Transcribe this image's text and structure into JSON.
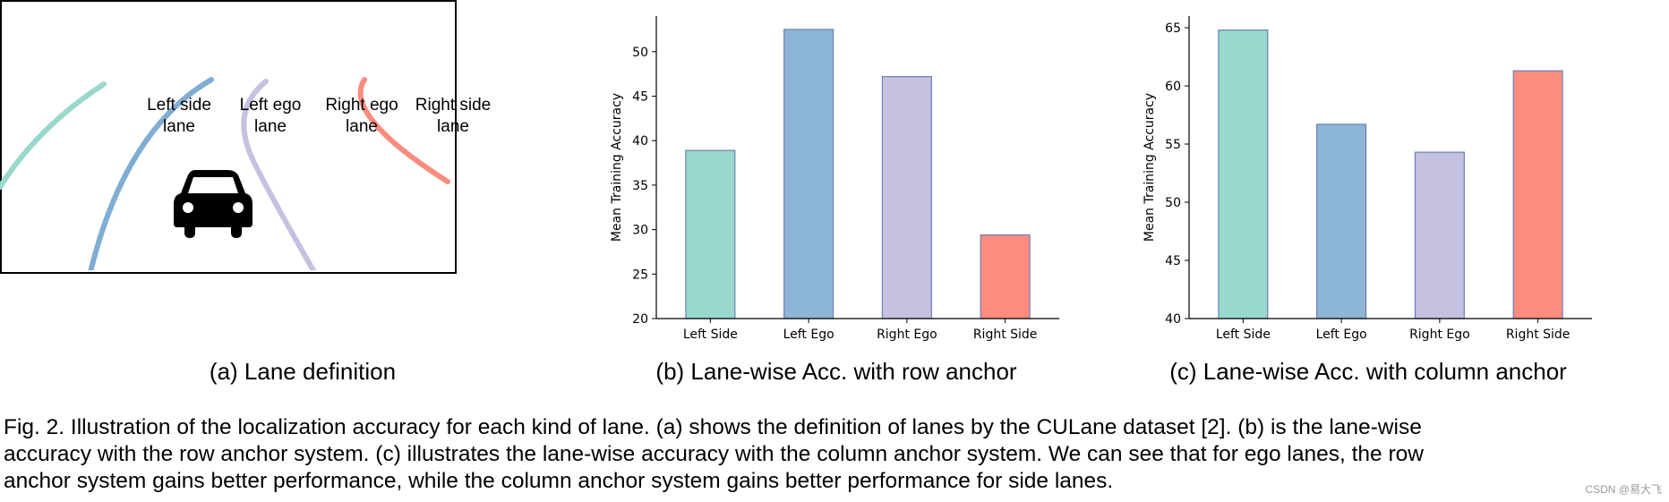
{
  "panel_a": {
    "lane_labels": [
      {
        "line1": "Left side",
        "line2": "lane"
      },
      {
        "line1": "Left ego",
        "line2": "lane"
      },
      {
        "line1": "Right ego",
        "line2": "lane"
      },
      {
        "line1": "Right side",
        "line2": "lane"
      }
    ],
    "lane_colors": [
      "#99d8cc",
      "#7fadd3",
      "#c5c1e0",
      "#f98c7e"
    ],
    "icon": "car-icon",
    "caption": "(a) Lane definition"
  },
  "chart_data": [
    {
      "type": "bar",
      "caption": "(b) Lane-wise Acc. with row anchor",
      "categories": [
        "Left Side",
        "Left Ego",
        "Right Ego",
        "Right Side"
      ],
      "values": [
        38.9,
        52.5,
        47.2,
        29.4
      ],
      "colors": [
        "#99d8cc",
        "#8cb5d6",
        "#c5c1e0",
        "#fb8c7f"
      ],
      "ylabel": "Mean Training Accuracy",
      "ylim": [
        20,
        54
      ],
      "yticks": [
        20,
        25,
        30,
        35,
        40,
        45,
        50
      ],
      "grid": false
    },
    {
      "type": "bar",
      "caption": "(c) Lane-wise Acc. with column anchor",
      "categories": [
        "Left Side",
        "Left Ego",
        "Right Ego",
        "Right Side"
      ],
      "values": [
        64.8,
        56.7,
        54.3,
        61.3
      ],
      "colors": [
        "#99d8cc",
        "#8cb5d6",
        "#c5c1e0",
        "#fb8c7f"
      ],
      "ylabel": "Mean Training Accuracy",
      "ylim": [
        40,
        66
      ],
      "yticks": [
        40,
        45,
        50,
        55,
        60,
        65
      ],
      "grid": false
    }
  ],
  "caption": {
    "line1": "Fig. 2. Illustration of the localization accuracy for each kind of lane. (a) shows the definition of lanes by the CULane dataset [2]. (b) is the lane-wise",
    "line2": "accuracy with the row anchor system. (c) illustrates the lane-wise accuracy with the column anchor system. We can see that for ego lanes, the row",
    "line3": "anchor system gains better performance, while the column anchor system gains better performance for side lanes."
  },
  "watermark": "CSDN @易大飞"
}
